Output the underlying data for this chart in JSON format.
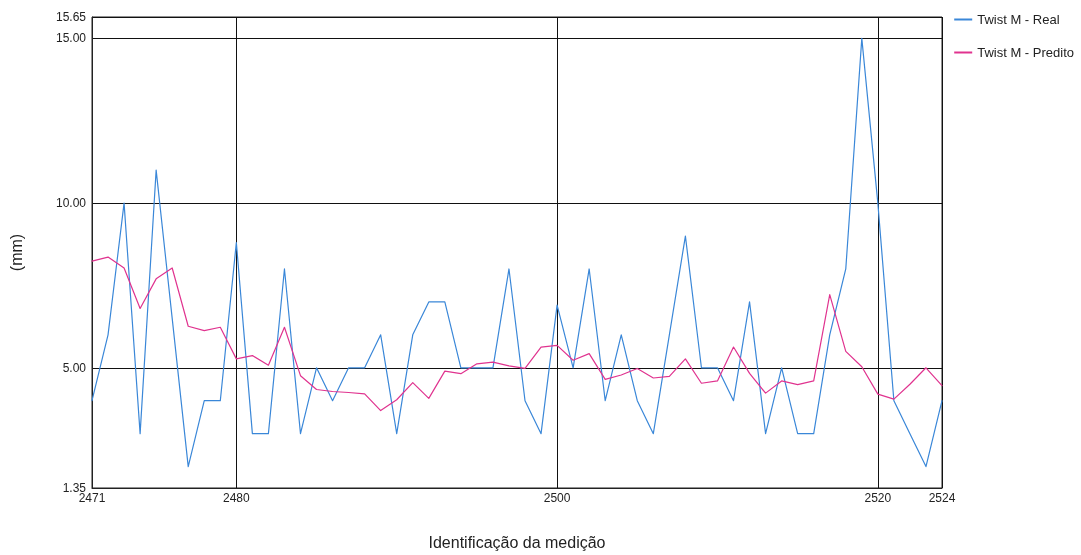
{
  "chart_data": {
    "type": "line",
    "xlabel": "Identificação da medição",
    "ylabel": "(mm)",
    "x": [
      2471,
      2472,
      2473,
      2474,
      2475,
      2476,
      2477,
      2478,
      2479,
      2480,
      2481,
      2482,
      2483,
      2484,
      2485,
      2486,
      2487,
      2488,
      2489,
      2490,
      2491,
      2492,
      2493,
      2494,
      2495,
      2496,
      2497,
      2498,
      2499,
      2500,
      2501,
      2502,
      2503,
      2504,
      2505,
      2506,
      2507,
      2508,
      2509,
      2510,
      2511,
      2512,
      2513,
      2514,
      2515,
      2516,
      2517,
      2518,
      2519,
      2520,
      2521,
      2522,
      2523,
      2524
    ],
    "series": [
      {
        "name": "Twist M - Real",
        "color": "#3a87d8",
        "values": [
          4,
          6,
          10,
          3,
          11,
          6.5,
          2,
          4,
          4,
          8.8,
          3,
          3,
          8,
          3,
          5,
          4,
          5,
          5,
          6,
          3,
          6,
          7,
          7,
          5,
          5,
          5,
          8,
          4,
          3,
          6.9,
          5,
          8,
          4,
          6,
          4,
          3,
          6,
          9,
          5,
          5,
          4,
          7,
          3,
          5,
          3,
          3,
          6,
          8,
          15,
          10,
          4,
          3,
          2,
          4
        ]
      },
      {
        "name": "Twist M - Predito",
        "color": "#e0338f",
        "values": [
          8.24,
          8.36,
          8.03,
          6.8,
          7.7,
          8.03,
          6.26,
          6.13,
          6.23,
          5.27,
          5.37,
          5.08,
          6.23,
          4.76,
          4.34,
          4.28,
          4.25,
          4.21,
          3.7,
          4.03,
          4.55,
          4.07,
          4.9,
          4.82,
          5.12,
          5.17,
          5.06,
          4.98,
          5.63,
          5.68,
          5.23,
          5.43,
          4.65,
          4.78,
          4.98,
          4.69,
          4.74,
          5.27,
          4.53,
          4.6,
          5.63,
          4.83,
          4.23,
          4.6,
          4.49,
          4.6,
          7.22,
          5.5,
          5.03,
          4.2,
          4.05,
          4.5,
          5,
          4.46
        ]
      }
    ],
    "xlim": [
      2471,
      2524
    ],
    "xticks": [
      2471,
      2480,
      2500,
      2520,
      2524
    ],
    "ylim": [
      1.35,
      15.65
    ],
    "yticks": [
      {
        "value": 1.35,
        "label": "1.35"
      },
      {
        "value": 5,
        "label": "5.00"
      },
      {
        "value": 10,
        "label": "10.00"
      },
      {
        "value": 15,
        "label": "15.00"
      },
      {
        "value": 15.65,
        "label": "15.65"
      }
    ],
    "grid": true,
    "legend": "top right",
    "marker": "none",
    "line_style": "solid"
  }
}
